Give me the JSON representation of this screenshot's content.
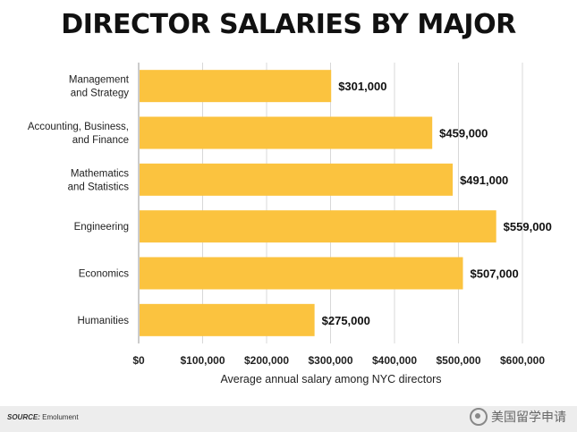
{
  "chart_data": {
    "type": "bar",
    "orientation": "horizontal",
    "title": "DIRECTOR SALARIES BY MAJOR",
    "xlabel": "Average annual salary among NYC directors",
    "categories": [
      [
        "Management",
        "and Strategy"
      ],
      [
        "Accounting, Business,",
        "and Finance"
      ],
      [
        "Mathematics",
        "and Statistics"
      ],
      [
        "Engineering"
      ],
      [
        "Economics"
      ],
      [
        "Humanities"
      ]
    ],
    "values": [
      301000,
      459000,
      491000,
      559000,
      507000,
      275000
    ],
    "value_labels": [
      "$301,000",
      "$459,000",
      "$491,000",
      "$559,000",
      "$507,000",
      "$275,000"
    ],
    "xlim": [
      0,
      600000
    ],
    "x_ticks": [
      0,
      100000,
      200000,
      300000,
      400000,
      500000,
      600000
    ],
    "x_tick_labels": [
      "$0",
      "$100,000",
      "$200,000",
      "$300,000",
      "$400,000",
      "$500,000",
      "$600,000"
    ],
    "grid": "vertical",
    "bar_color": "#fbc33f"
  },
  "footer": {
    "source_label": "SOURCE:",
    "source_value": "Emolument",
    "watermark": "美国留学申请"
  }
}
